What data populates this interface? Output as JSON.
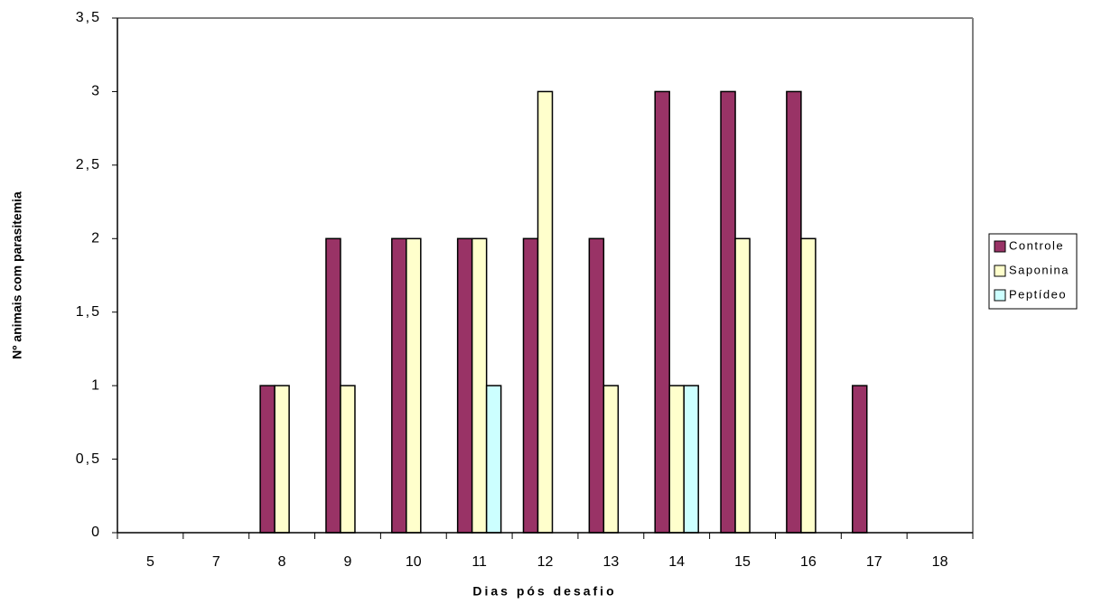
{
  "chart_data": {
    "type": "bar",
    "x_label": "Dias pós desafio",
    "y_label": "Nº animais com parasitemia",
    "categories": [
      "5",
      "7",
      "8",
      "9",
      "10",
      "11",
      "12",
      "13",
      "14",
      "15",
      "16",
      "17",
      "18"
    ],
    "series": [
      {
        "name": "Controle",
        "color": "#993366",
        "values": [
          0,
          0,
          1,
          2,
          2,
          2,
          2,
          2,
          3,
          3,
          3,
          1,
          0
        ]
      },
      {
        "name": "Saponina",
        "color": "#ffffcc",
        "values": [
          0,
          0,
          1,
          1,
          2,
          2,
          3,
          1,
          1,
          2,
          2,
          0,
          0
        ]
      },
      {
        "name": "Peptídeo",
        "color": "#ccffff",
        "values": [
          0,
          0,
          0,
          0,
          0,
          1,
          0,
          0,
          1,
          0,
          0,
          0,
          0
        ]
      }
    ],
    "ylim": [
      0,
      3.5
    ],
    "yticks": [
      0,
      {
        "value": 0.5,
        "label": "0,5"
      },
      1,
      {
        "value": 1.5,
        "label": "1,5"
      },
      2,
      {
        "value": 2.5,
        "label": "2,5"
      },
      3,
      {
        "value": 3.5,
        "label": "3,5"
      }
    ],
    "grid": false,
    "legend": "right"
  }
}
